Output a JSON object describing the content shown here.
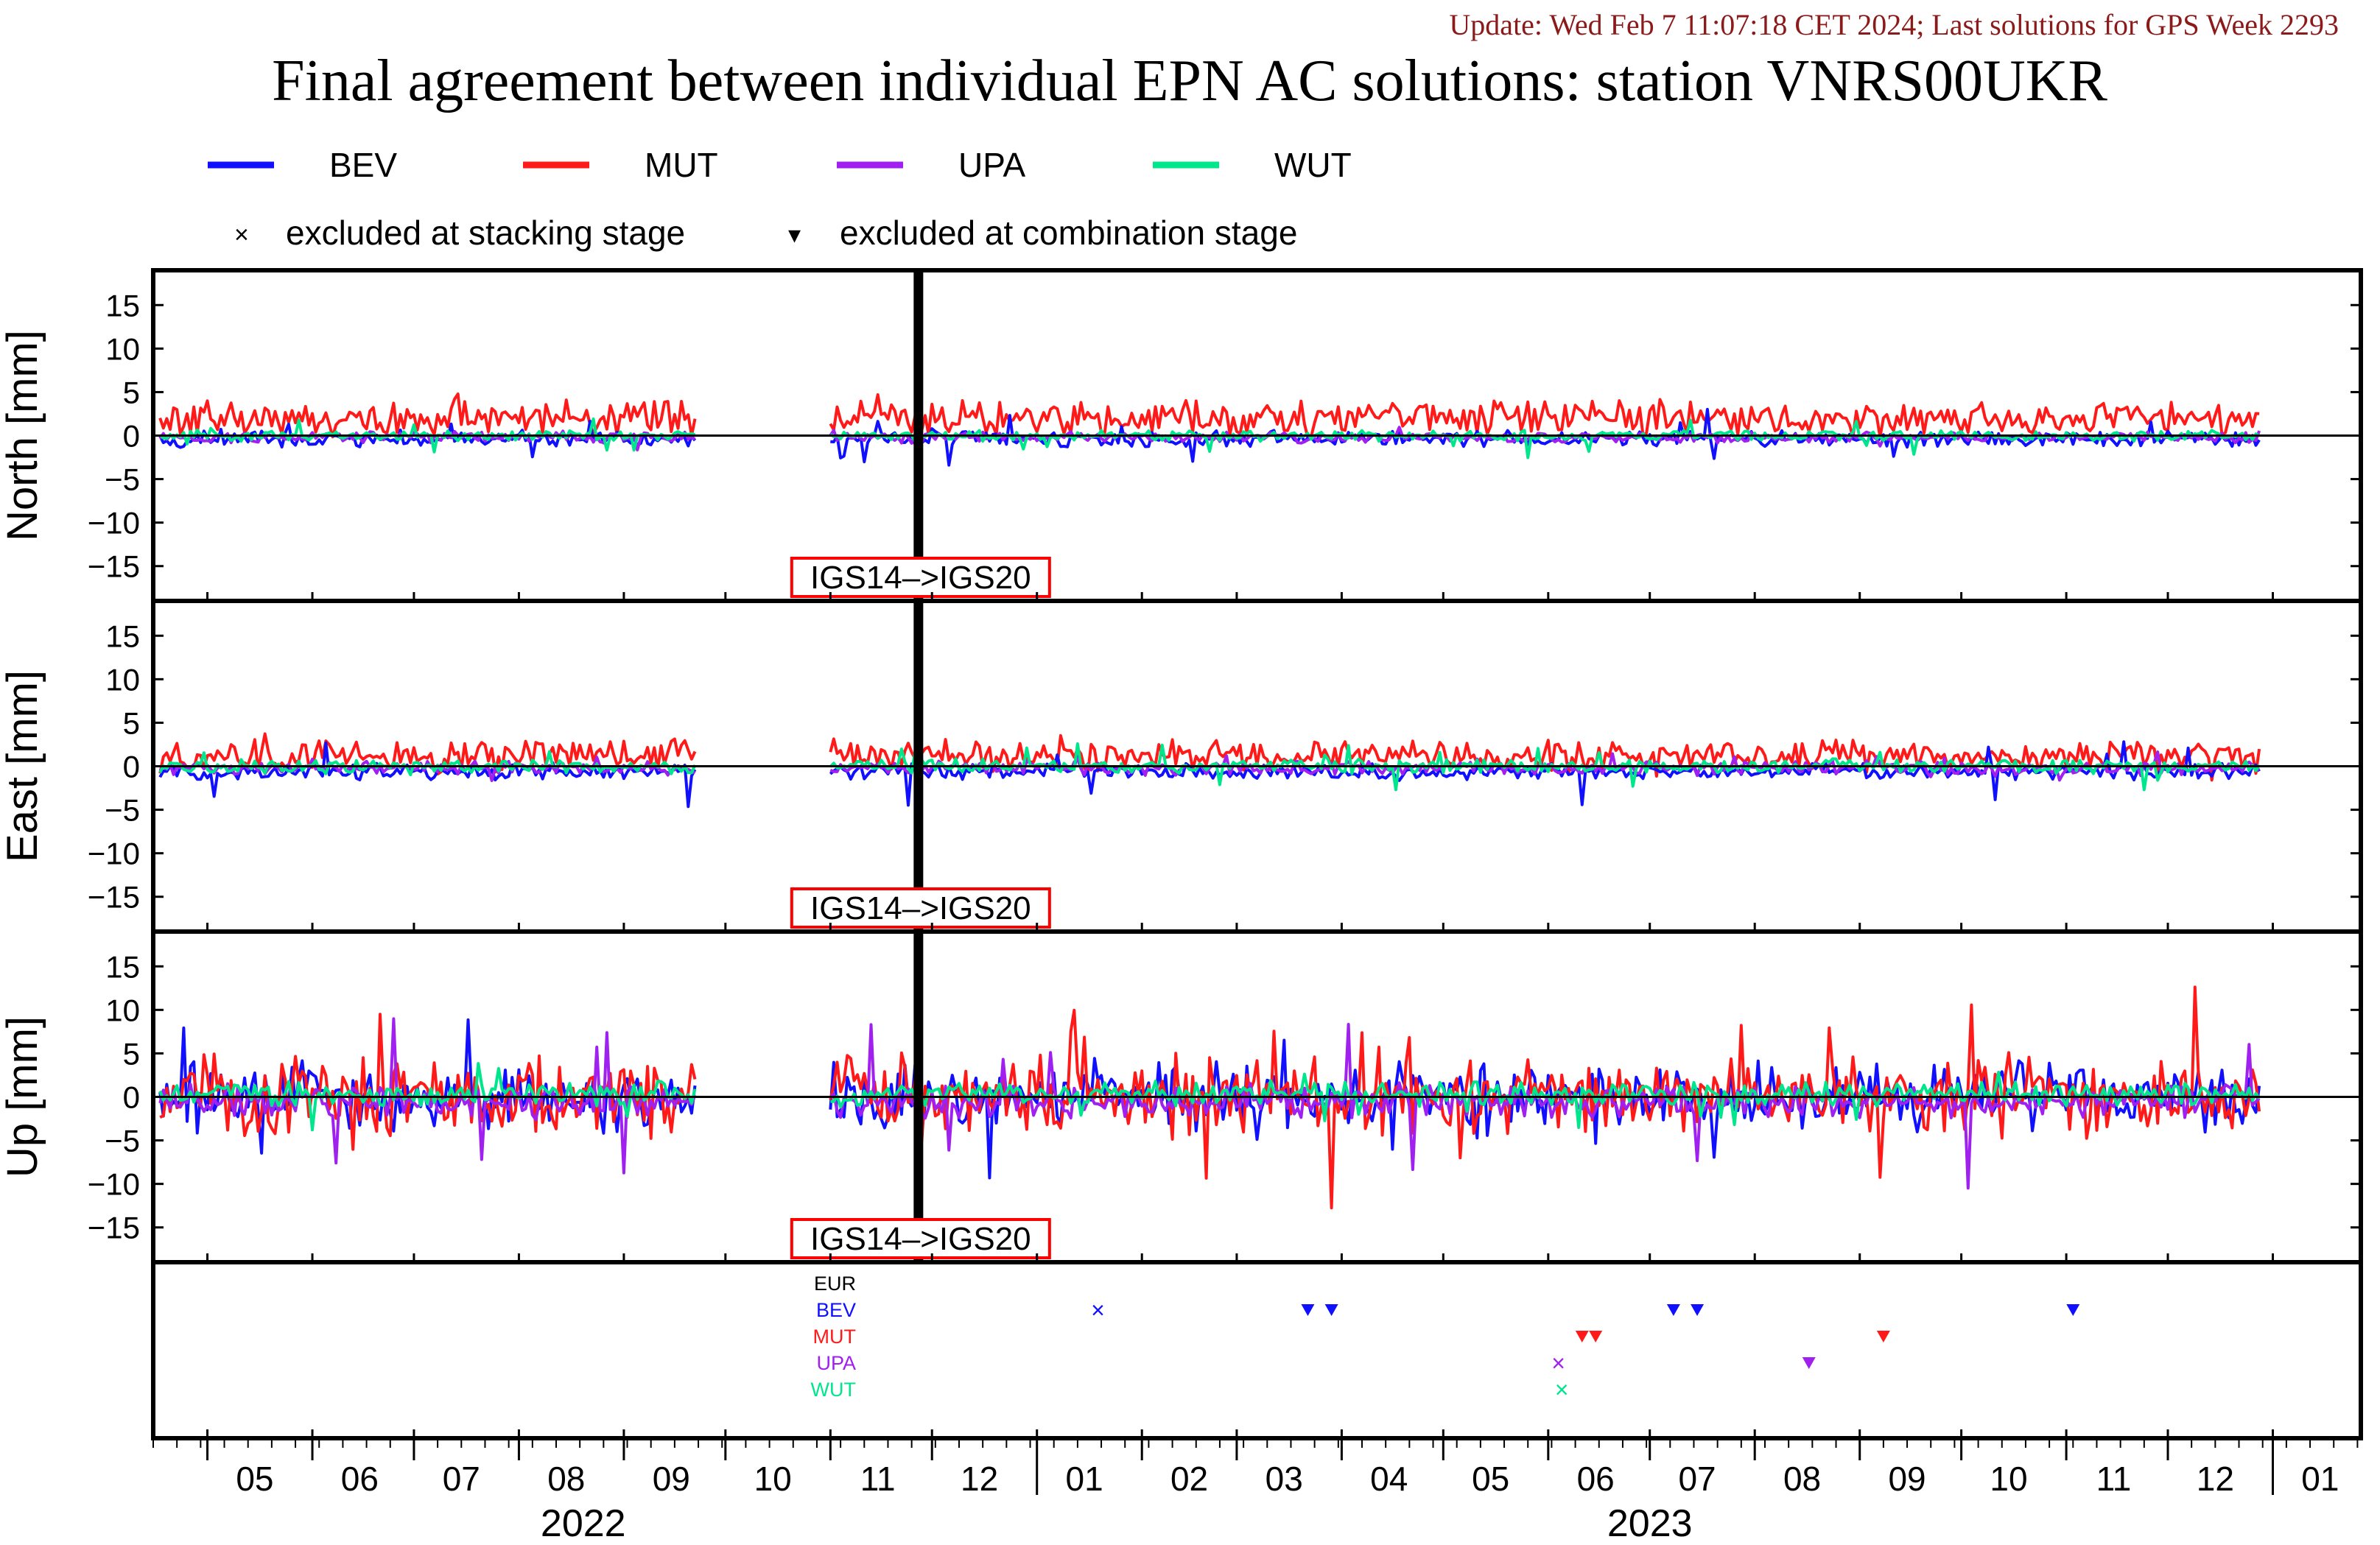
{
  "header": {
    "update_text": "Update: Wed Feb  7 11:07:18 CET 2024; Last solutions for GPS Week 2293",
    "title": "Final agreement between individual EPN AC solutions: station VNRS00UKR"
  },
  "legend": {
    "series": [
      {
        "name": "BEV",
        "color": "#1010ff"
      },
      {
        "name": "MUT",
        "color": "#ff1a1a"
      },
      {
        "name": "UPA",
        "color": "#a020f0"
      },
      {
        "name": "WUT",
        "color": "#00e68c"
      }
    ],
    "markers": [
      {
        "symbol": "×",
        "label": "excluded at stacking stage"
      },
      {
        "symbol": "▾",
        "label": "excluded at combination stage"
      }
    ]
  },
  "colors": {
    "BEV": "#1010ff",
    "MUT": "#ff1a1a",
    "UPA": "#a020f0",
    "WUT": "#00e68c",
    "EUR": "#000000",
    "annotation": "#ff0000",
    "update": "#8b1a1a"
  },
  "chart_data": {
    "type": "line",
    "x_start": "2022-04-15",
    "x_end": "2024-01-27",
    "x_unit": "date",
    "ylim": [
      -19,
      19
    ],
    "yticks": [
      15,
      10,
      5,
      0,
      -5,
      -10,
      -15
    ],
    "year_labels": [
      {
        "label": "2022",
        "at": "2022-08-20"
      },
      {
        "label": "2023",
        "at": "2023-07-01"
      }
    ],
    "month_labels": [
      "05",
      "06",
      "07",
      "08",
      "09",
      "10",
      "11",
      "12",
      "01",
      "02",
      "03",
      "04",
      "05",
      "06",
      "07",
      "08",
      "09",
      "10",
      "11",
      "12",
      "01"
    ],
    "frame_change": {
      "date": "2022-11-27",
      "label": "IGS14–>IGS20"
    },
    "data_gaps": [
      [
        "2022-09-23",
        "2022-10-31"
      ]
    ],
    "panels": [
      {
        "label": "North [mm]",
        "key": "north",
        "series": [
          {
            "name": "MUT",
            "mean": 2.0,
            "amplitude": 1.3,
            "spike": 1.5
          },
          {
            "name": "BEV",
            "mean": -0.4,
            "amplitude": 0.6,
            "spike": 2.6
          },
          {
            "name": "UPA",
            "mean": -0.2,
            "amplitude": 0.4,
            "spike": 1.0
          },
          {
            "name": "WUT",
            "mean": 0.0,
            "amplitude": 0.4,
            "spike": 2.0
          }
        ]
      },
      {
        "label": "East [mm]",
        "key": "east",
        "series": [
          {
            "name": "MUT",
            "mean": 1.2,
            "amplitude": 1.2,
            "spike": 1.5
          },
          {
            "name": "BEV",
            "mean": -0.6,
            "amplitude": 0.6,
            "spike": 3.6
          },
          {
            "name": "UPA",
            "mean": -0.2,
            "amplitude": 0.5,
            "spike": 1.5
          },
          {
            "name": "WUT",
            "mean": 0.0,
            "amplitude": 0.5,
            "spike": 2.5
          }
        ]
      },
      {
        "label": "Up [mm]",
        "key": "up",
        "series": [
          {
            "name": "BEV",
            "mean": 0.0,
            "amplitude": 2.4,
            "spike": 9.0
          },
          {
            "name": "MUT",
            "mean": 0.0,
            "amplitude": 3.0,
            "spike": 9.5
          },
          {
            "name": "UPA",
            "mean": -0.5,
            "amplitude": 1.2,
            "spike": 10.0
          },
          {
            "name": "WUT",
            "mean": 0.3,
            "amplitude": 0.9,
            "spike": 3.0
          }
        ]
      }
    ],
    "exclusions": {
      "rows": [
        {
          "name": "EUR",
          "color": "#000000",
          "stacking": [],
          "combination": []
        },
        {
          "name": "BEV",
          "color": "#1010ff",
          "stacking": [
            "2023-01-19"
          ],
          "combination": [
            "2023-03-22",
            "2023-03-29",
            "2023-07-08",
            "2023-07-15",
            "2023-11-03"
          ]
        },
        {
          "name": "MUT",
          "color": "#ff1a1a",
          "stacking": [],
          "combination": [
            "2023-06-11",
            "2023-06-15",
            "2023-09-08"
          ]
        },
        {
          "name": "UPA",
          "color": "#a020f0",
          "stacking": [
            "2023-06-04"
          ],
          "combination": [
            "2023-08-17"
          ]
        },
        {
          "name": "WUT",
          "color": "#00e68c",
          "stacking": [
            "2023-06-05"
          ],
          "combination": []
        }
      ]
    }
  }
}
